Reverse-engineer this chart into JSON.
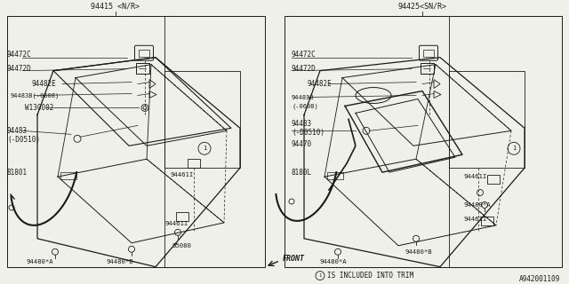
{
  "bg_color": "#f0f0eb",
  "line_color": "#1a1a1a",
  "title_left": "94415 <N/R>",
  "title_right": "94425<SN/R>",
  "footer": "A942001109",
  "front_label": "FRONT"
}
